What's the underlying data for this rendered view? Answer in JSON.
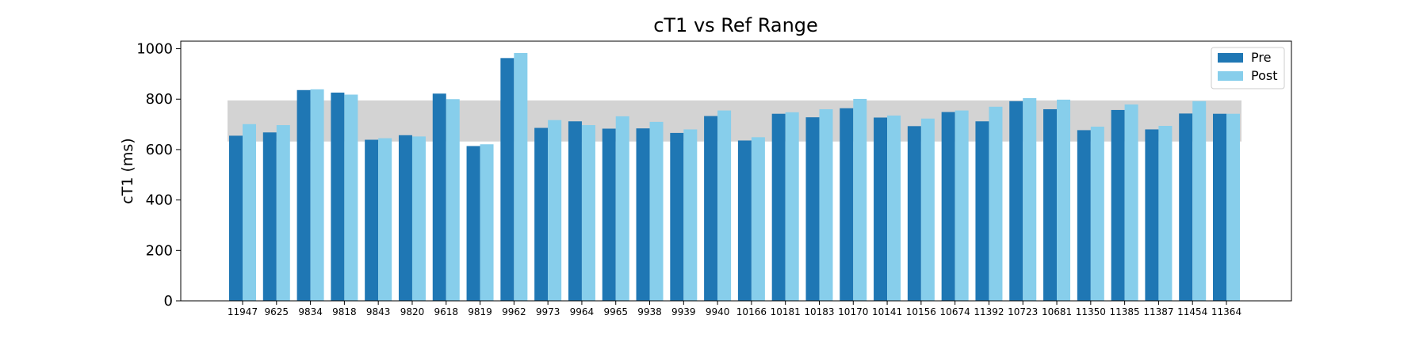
{
  "chart_data": {
    "type": "bar",
    "title": "cT1 vs Ref Range",
    "xlabel": "",
    "ylabel": "cT1 (ms)",
    "ylim": [
      0,
      1030
    ],
    "yticks": [
      0,
      200,
      400,
      600,
      800,
      1000
    ],
    "grid": false,
    "legend_position": "top-right",
    "reference_range": [
      632,
      795
    ],
    "colors": {
      "pre": "#1f77b4",
      "post": "#87ceeb",
      "reference": "#d3d3d3",
      "axis": "#000000"
    },
    "categories": [
      "11947",
      "9625",
      "9834",
      "9818",
      "9843",
      "9820",
      "9618",
      "9819",
      "9962",
      "9973",
      "9964",
      "9965",
      "9938",
      "9939",
      "9940",
      "10166",
      "10181",
      "10183",
      "10170",
      "10141",
      "10156",
      "10674",
      "11392",
      "10723",
      "10681",
      "11350",
      "11385",
      "11387",
      "11454",
      "11364"
    ],
    "series": [
      {
        "name": "Pre",
        "values": [
          655,
          668,
          836,
          826,
          639,
          657,
          822,
          614,
          963,
          686,
          712,
          683,
          684,
          666,
          733,
          636,
          742,
          728,
          764,
          727,
          693,
          749,
          712,
          792,
          760,
          677,
          757,
          680,
          743,
          742
        ]
      },
      {
        "name": "Post",
        "values": [
          701,
          697,
          839,
          818,
          645,
          652,
          800,
          621,
          983,
          717,
          697,
          732,
          710,
          680,
          755,
          649,
          748,
          760,
          801,
          735,
          723,
          755,
          770,
          804,
          798,
          691,
          779,
          694,
          792,
          742
        ]
      }
    ]
  }
}
